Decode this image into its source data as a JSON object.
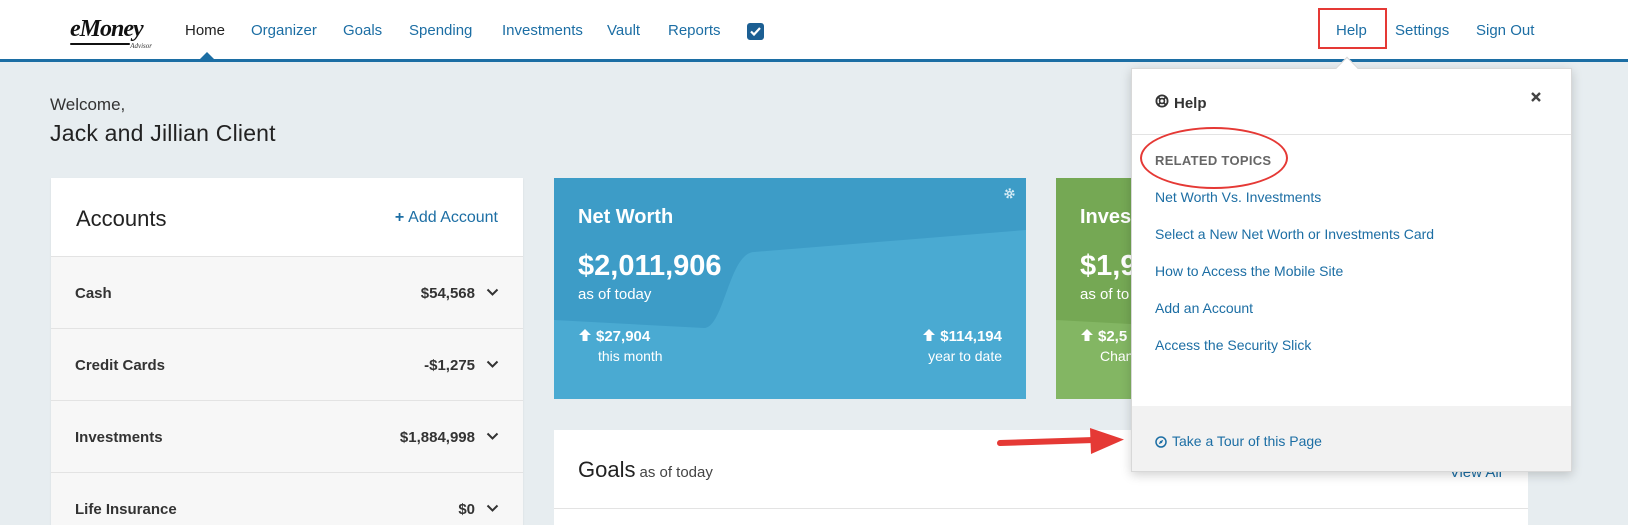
{
  "nav": {
    "logo_text": "eMoney",
    "logo_sub": "Advisor",
    "items": [
      {
        "label": "Home"
      },
      {
        "label": "Organizer"
      },
      {
        "label": "Goals"
      },
      {
        "label": "Spending"
      },
      {
        "label": "Investments"
      },
      {
        "label": "Vault"
      },
      {
        "label": "Reports"
      }
    ],
    "right": [
      {
        "label": "Help"
      },
      {
        "label": "Settings"
      },
      {
        "label": "Sign Out"
      }
    ]
  },
  "welcome": {
    "greeting": "Welcome,",
    "name": "Jack and Jillian Client"
  },
  "accounts": {
    "title": "Accounts",
    "add_label": "Add Account",
    "rows": [
      {
        "label": "Cash",
        "value": "$54,568"
      },
      {
        "label": "Credit Cards",
        "value": "-$1,275"
      },
      {
        "label": "Investments",
        "value": "$1,884,998"
      },
      {
        "label": "Life Insurance",
        "value": "$0"
      }
    ]
  },
  "net_worth": {
    "title": "Net Worth",
    "amount": "$2,011,906",
    "as_of": "as of today",
    "month_change": "$27,904",
    "month_caption": "this month",
    "ytd_change": "$114,194",
    "ytd_caption": "year to date",
    "color": "#3d9cc7"
  },
  "investments_card": {
    "title": "Investments",
    "amount": "$1,9",
    "as_of": "as of to",
    "change": "$2,5",
    "caption": "Chan",
    "color": "#75a854"
  },
  "goals": {
    "title": "Goals",
    "subtitle": "as of today",
    "view_all": "View All"
  },
  "help_popover": {
    "title": "Help",
    "section_label": "RELATED TOPICS",
    "topics": [
      {
        "label": "Net Worth Vs. Investments"
      },
      {
        "label": "Select a New Net Worth or Investments Card"
      },
      {
        "label": "How to Access the Mobile Site"
      },
      {
        "label": "Add an Account"
      },
      {
        "label": "Access the Security Slick"
      }
    ],
    "tour_label": "Take a Tour of this Page"
  },
  "annotation_color": "#e53935"
}
